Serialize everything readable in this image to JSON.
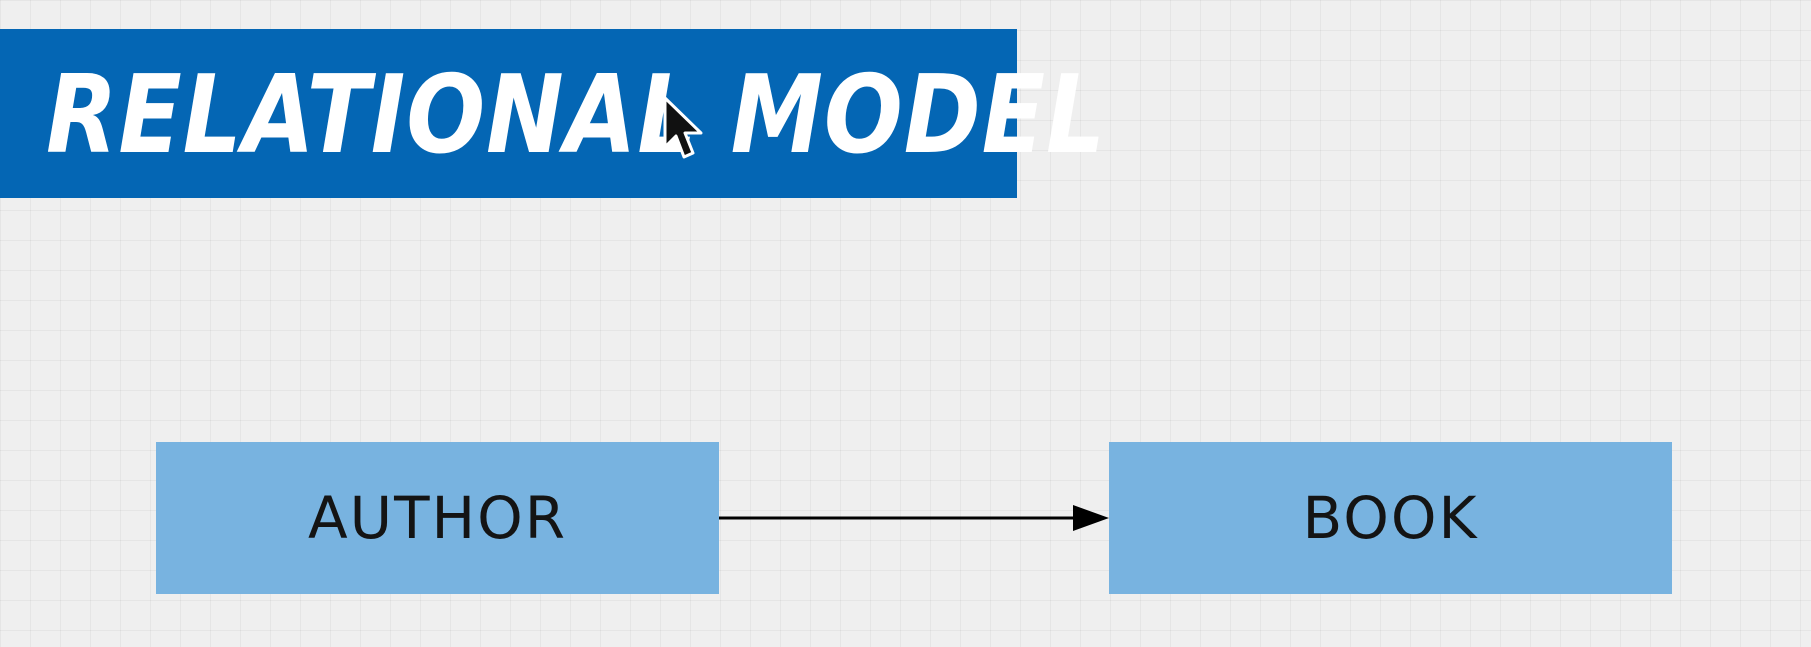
{
  "title": {
    "text": "RELATIONAL MODEL",
    "background_color": "#0466b4",
    "text_color": "#ffffff"
  },
  "diagram": {
    "entities": [
      {
        "id": "author",
        "label": "AUTHOR"
      },
      {
        "id": "book",
        "label": "BOOK"
      }
    ],
    "relationships": [
      {
        "from": "author",
        "to": "book",
        "type": "directed-arrow"
      }
    ],
    "entity_color": "#78b3e0",
    "arrow_color": "#000000"
  },
  "cursor": {
    "icon": "arrow-cursor-icon"
  }
}
